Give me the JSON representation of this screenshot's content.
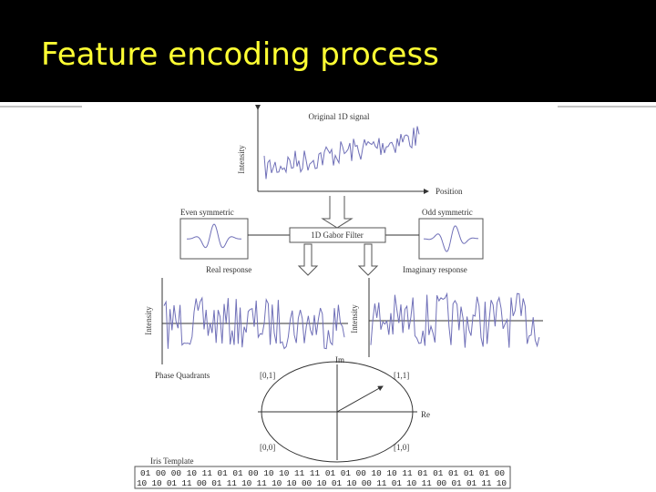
{
  "header": {
    "title": "Feature encoding process"
  },
  "diagram": {
    "signal_title": "Original 1D signal",
    "signal_y_label": "Intensity",
    "signal_x_label": "Position",
    "even_label": "Even symmetric",
    "odd_label": "Odd symmetric",
    "filter_label": "1D Gabor Filter",
    "real_label": "Real response",
    "imag_label": "Imaginary response",
    "real_y_label": "Intensity",
    "imag_y_label": "Intensity",
    "quadrants_label": "Phase Quadrants",
    "im_axis": "Im",
    "re_axis": "Re",
    "q01": "[0,1]",
    "q11": "[1,1]",
    "q00": "[0,0]",
    "q10": "[1,0]",
    "template_label": "Iris Template",
    "template_rows": [
      "01 00 00 10 11 01 01 00 10 10 11 11 01 01 00 10 10 11 01 01 01 01 01 00",
      "10 10 01 11 00 01 11 10 11 10 10 00 10 01 10 00 11 01 10 11 00 01 01 11 10"
    ]
  }
}
